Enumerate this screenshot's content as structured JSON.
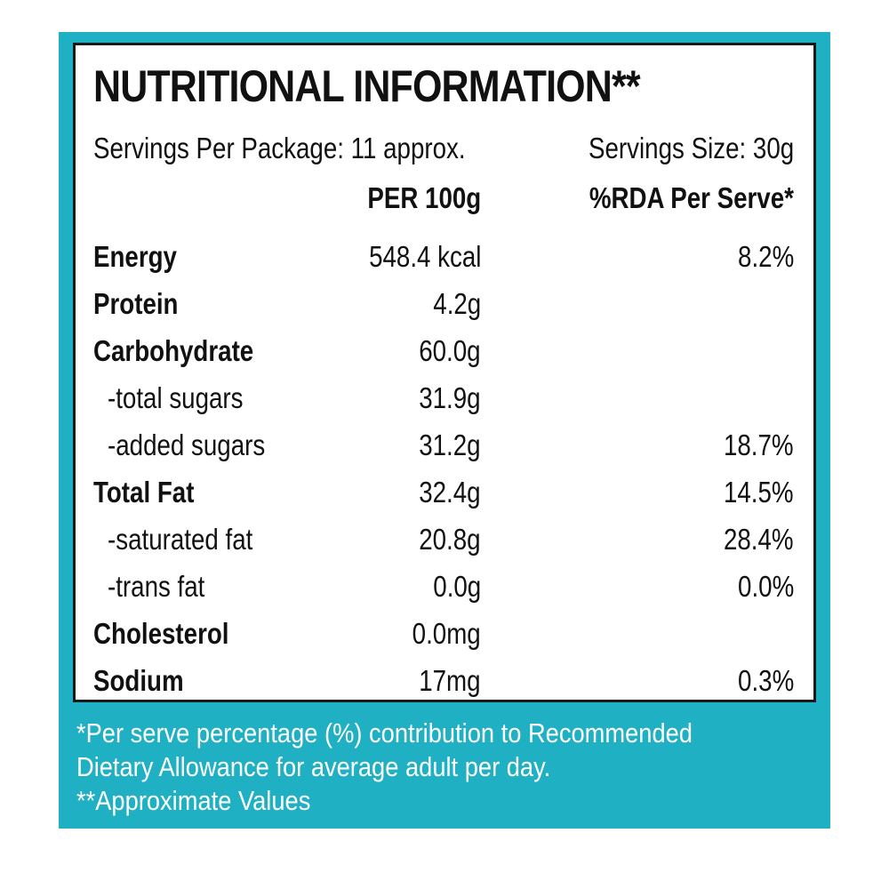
{
  "title": "NUTRITIONAL INFORMATION**",
  "servings_per_package": "Servings Per Package: 11 approx.",
  "serving_size": "Servings Size: 30g",
  "headers": {
    "per100": "PER 100g",
    "rda": "%RDA Per Serve*"
  },
  "rows": [
    {
      "name": "Energy",
      "per100": "548.4 kcal",
      "rda": "8.2%"
    },
    {
      "name": "Protein",
      "per100": "4.2g",
      "rda": ""
    },
    {
      "name": "Carbohydrate",
      "per100": "60.0g",
      "rda": ""
    },
    {
      "name": "-total sugars",
      "per100": "31.9g",
      "rda": ""
    },
    {
      "name": "-added sugars",
      "per100": "31.2g",
      "rda": "18.7%"
    },
    {
      "name": "Total Fat",
      "per100": "32.4g",
      "rda": "14.5%"
    },
    {
      "name": "-saturated fat",
      "per100": "20.8g",
      "rda": "28.4%"
    },
    {
      "name": "-trans fat",
      "per100": "0.0g",
      "rda": "0.0%"
    },
    {
      "name": "Cholesterol",
      "per100": "0.0mg",
      "rda": ""
    },
    {
      "name": "Sodium",
      "per100": "17mg",
      "rda": "0.3%"
    }
  ],
  "footnotes": [
    "*Per serve percentage (%) contribution to Recommended",
    "Dietary Allowance for average adult per day.",
    "**Approximate Values"
  ],
  "colors": {
    "panel": "#1fb0c4",
    "border": "#1a1a1a",
    "text": "#111111"
  }
}
